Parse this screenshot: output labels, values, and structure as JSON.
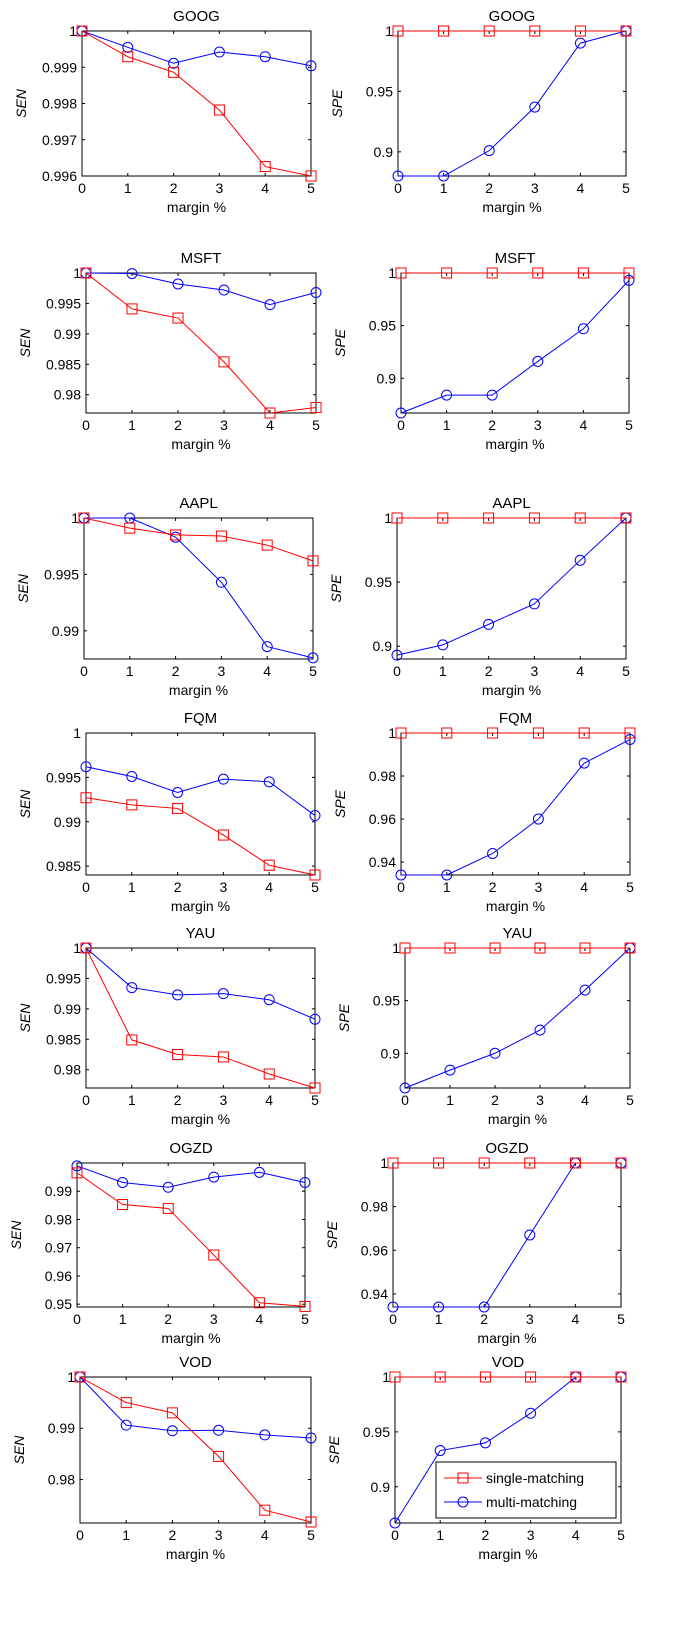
{
  "figure": {
    "legend": {
      "entries": [
        {
          "label": "single-matching",
          "color": "#ff0000",
          "marker": "square"
        },
        {
          "label": "multi-matching",
          "color": "#0000ff",
          "marker": "circle"
        }
      ],
      "placement": "lower-right of last panel"
    }
  },
  "chart_data": [
    {
      "type": "line",
      "title": "GOOG",
      "xlabel": "margin %",
      "ylabel": "SEN",
      "x": [
        0,
        1,
        2,
        3,
        4,
        5
      ],
      "xlim": [
        0,
        5
      ],
      "ylim": [
        0.996,
        1
      ],
      "yticks": [
        0.996,
        0.997,
        0.998,
        0.999,
        1
      ],
      "yticklabels": [
        "0.996",
        "0.997",
        "0.998",
        "0.999",
        "1"
      ],
      "series": [
        {
          "name": "single-matching",
          "color": "#ff0000",
          "marker": "square",
          "values": [
            1.0,
            0.99929,
            0.99886,
            0.99782,
            0.99626,
            0.996
          ]
        },
        {
          "name": "multi-matching",
          "color": "#0000ff",
          "marker": "circle",
          "values": [
            1.0,
            0.99955,
            0.99911,
            0.99942,
            0.99929,
            0.99904
          ]
        }
      ]
    },
    {
      "type": "line",
      "title": "GOOG",
      "xlabel": "margin %",
      "ylabel": "SPE",
      "x": [
        0,
        1,
        2,
        3,
        4,
        5
      ],
      "xlim": [
        0,
        5
      ],
      "ylim": [
        0.88,
        1
      ],
      "yticks": [
        0.9,
        0.95,
        1
      ],
      "yticklabels": [
        "0.9",
        "0.95",
        "1"
      ],
      "series": [
        {
          "name": "single-matching",
          "color": "#ff0000",
          "marker": "square",
          "values": [
            1,
            1,
            1,
            1,
            1,
            1
          ]
        },
        {
          "name": "multi-matching",
          "color": "#0000ff",
          "marker": "circle",
          "values": [
            0.88,
            0.88,
            0.901,
            0.937,
            0.99,
            1.0
          ]
        }
      ]
    },
    {
      "type": "line",
      "title": "MSFT",
      "xlabel": "margin %",
      "ylabel": "SEN",
      "x": [
        0,
        1,
        2,
        3,
        4,
        5
      ],
      "xlim": [
        0,
        5
      ],
      "ylim": [
        0.977,
        1
      ],
      "yticks": [
        0.98,
        0.985,
        0.99,
        0.995,
        1
      ],
      "yticklabels": [
        "0.98",
        "0.985",
        "0.99",
        "0.995",
        "1"
      ],
      "series": [
        {
          "name": "single-matching",
          "color": "#ff0000",
          "marker": "square",
          "values": [
            1.0,
            0.9941,
            0.9926,
            0.9854,
            0.977,
            0.9779
          ]
        },
        {
          "name": "multi-matching",
          "color": "#0000ff",
          "marker": "circle",
          "values": [
            1.0,
            0.9999,
            0.9982,
            0.9972,
            0.9948,
            0.9968
          ]
        }
      ]
    },
    {
      "type": "line",
      "title": "MSFT",
      "xlabel": "margin %",
      "ylabel": "SPE",
      "x": [
        0,
        1,
        2,
        3,
        4,
        5
      ],
      "xlim": [
        0,
        5
      ],
      "ylim": [
        0.867,
        1
      ],
      "yticks": [
        0.9,
        0.95,
        1
      ],
      "yticklabels": [
        "0.9",
        "0.95",
        "1"
      ],
      "series": [
        {
          "name": "single-matching",
          "color": "#ff0000",
          "marker": "square",
          "values": [
            1,
            1,
            1,
            1,
            1,
            1
          ]
        },
        {
          "name": "multi-matching",
          "color": "#0000ff",
          "marker": "circle",
          "values": [
            0.867,
            0.884,
            0.884,
            0.916,
            0.947,
            0.993
          ]
        }
      ]
    },
    {
      "type": "line",
      "title": "AAPL",
      "xlabel": "margin %",
      "ylabel": "SEN",
      "x": [
        0,
        1,
        2,
        3,
        4,
        5
      ],
      "xlim": [
        0,
        5
      ],
      "ylim": [
        0.9875,
        1
      ],
      "yticks": [
        0.99,
        0.995,
        1
      ],
      "yticklabels": [
        "0.99",
        "0.995",
        "1"
      ],
      "series": [
        {
          "name": "single-matching",
          "color": "#ff0000",
          "marker": "square",
          "values": [
            1.0,
            0.9991,
            0.9985,
            0.9984,
            0.9976,
            0.9962
          ]
        },
        {
          "name": "multi-matching",
          "color": "#0000ff",
          "marker": "circle",
          "values": [
            1.0,
            1.0,
            0.9983,
            0.9943,
            0.9886,
            0.9876
          ]
        }
      ]
    },
    {
      "type": "line",
      "title": "AAPL",
      "xlabel": "margin %",
      "ylabel": "SPE",
      "x": [
        0,
        1,
        2,
        3,
        4,
        5
      ],
      "xlim": [
        0,
        5
      ],
      "ylim": [
        0.89,
        1
      ],
      "yticks": [
        0.9,
        0.95,
        1
      ],
      "yticklabels": [
        "0.9",
        "0.95",
        "1"
      ],
      "series": [
        {
          "name": "single-matching",
          "color": "#ff0000",
          "marker": "square",
          "values": [
            1,
            1,
            1,
            1,
            1,
            1
          ]
        },
        {
          "name": "multi-matching",
          "color": "#0000ff",
          "marker": "circle",
          "values": [
            0.893,
            0.901,
            0.917,
            0.933,
            0.967,
            1.0
          ]
        }
      ]
    },
    {
      "type": "line",
      "title": "FQM",
      "xlabel": "margin %",
      "ylabel": "SEN",
      "x": [
        0,
        1,
        2,
        3,
        4,
        5
      ],
      "xlim": [
        0,
        5
      ],
      "ylim": [
        0.984,
        1
      ],
      "yticks": [
        0.985,
        0.99,
        0.995,
        1
      ],
      "yticklabels": [
        "0.985",
        "0.99",
        "0.995",
        "1"
      ],
      "series": [
        {
          "name": "single-matching",
          "color": "#ff0000",
          "marker": "square",
          "values": [
            0.9927,
            0.9919,
            0.9915,
            0.9885,
            0.9851,
            0.984
          ]
        },
        {
          "name": "multi-matching",
          "color": "#0000ff",
          "marker": "circle",
          "values": [
            0.9962,
            0.9951,
            0.9933,
            0.9948,
            0.9945,
            0.9907
          ]
        }
      ]
    },
    {
      "type": "line",
      "title": "FQM",
      "xlabel": "margin %",
      "ylabel": "SPE",
      "x": [
        0,
        1,
        2,
        3,
        4,
        5
      ],
      "xlim": [
        0,
        5
      ],
      "ylim": [
        0.934,
        1
      ],
      "yticks": [
        0.94,
        0.96,
        0.98,
        1
      ],
      "yticklabels": [
        "0.94",
        "0.96",
        "0.98",
        "1"
      ],
      "series": [
        {
          "name": "single-matching",
          "color": "#ff0000",
          "marker": "square",
          "values": [
            1,
            1,
            1,
            1,
            1,
            1
          ]
        },
        {
          "name": "multi-matching",
          "color": "#0000ff",
          "marker": "circle",
          "values": [
            0.934,
            0.934,
            0.944,
            0.96,
            0.986,
            0.997
          ]
        }
      ]
    },
    {
      "type": "line",
      "title": "YAU",
      "xlabel": "margin %",
      "ylabel": "SEN",
      "x": [
        0,
        1,
        2,
        3,
        4,
        5
      ],
      "xlim": [
        0,
        5
      ],
      "ylim": [
        0.977,
        1
      ],
      "yticks": [
        0.98,
        0.985,
        0.99,
        0.995,
        1
      ],
      "yticklabels": [
        "0.98",
        "0.985",
        "0.99",
        "0.995",
        "1"
      ],
      "series": [
        {
          "name": "single-matching",
          "color": "#ff0000",
          "marker": "square",
          "values": [
            1.0,
            0.9849,
            0.9825,
            0.9821,
            0.9793,
            0.977
          ]
        },
        {
          "name": "multi-matching",
          "color": "#0000ff",
          "marker": "circle",
          "values": [
            1.0,
            0.9935,
            0.9923,
            0.9925,
            0.9915,
            0.9883
          ]
        }
      ]
    },
    {
      "type": "line",
      "title": "YAU",
      "xlabel": "margin %",
      "ylabel": "SPE",
      "x": [
        0,
        1,
        2,
        3,
        4,
        5
      ],
      "xlim": [
        0,
        5
      ],
      "ylim": [
        0.867,
        1
      ],
      "yticks": [
        0.9,
        0.95,
        1
      ],
      "yticklabels": [
        "0.9",
        "0.95",
        "1"
      ],
      "series": [
        {
          "name": "single-matching",
          "color": "#ff0000",
          "marker": "square",
          "values": [
            1,
            1,
            1,
            1,
            1,
            1
          ]
        },
        {
          "name": "multi-matching",
          "color": "#0000ff",
          "marker": "circle",
          "values": [
            0.867,
            0.884,
            0.9,
            0.922,
            0.96,
            1.0
          ]
        }
      ]
    },
    {
      "type": "line",
      "title": "OGZD",
      "xlabel": "margin %",
      "ylabel": "SEN",
      "x": [
        0,
        1,
        2,
        3,
        4,
        5
      ],
      "xlim": [
        0,
        5
      ],
      "ylim": [
        0.949,
        1
      ],
      "yticks": [
        0.95,
        0.96,
        0.97,
        0.98,
        0.99
      ],
      "yticklabels": [
        "0.95",
        "0.96",
        "0.97",
        "0.98",
        "0.99"
      ],
      "series": [
        {
          "name": "single-matching",
          "color": "#ff0000",
          "marker": "square",
          "values": [
            0.9965,
            0.9853,
            0.9839,
            0.9674,
            0.9505,
            0.9492
          ]
        },
        {
          "name": "multi-matching",
          "color": "#0000ff",
          "marker": "circle",
          "values": [
            0.999,
            0.9931,
            0.9914,
            0.995,
            0.9967,
            0.9931
          ]
        }
      ]
    },
    {
      "type": "line",
      "title": "OGZD",
      "xlabel": "margin %",
      "ylabel": "SPE",
      "x": [
        0,
        1,
        2,
        3,
        4,
        5
      ],
      "xlim": [
        0,
        5
      ],
      "ylim": [
        0.934,
        1
      ],
      "yticks": [
        0.94,
        0.96,
        0.98,
        1
      ],
      "yticklabels": [
        "0.94",
        "0.96",
        "0.98",
        "1"
      ],
      "series": [
        {
          "name": "single-matching",
          "color": "#ff0000",
          "marker": "square",
          "values": [
            1,
            1,
            1,
            1,
            1,
            1
          ]
        },
        {
          "name": "multi-matching",
          "color": "#0000ff",
          "marker": "circle",
          "values": [
            0.934,
            0.934,
            0.934,
            0.967,
            1.0,
            1.0
          ]
        }
      ]
    },
    {
      "type": "line",
      "title": "VOD",
      "xlabel": "margin %",
      "ylabel": "SEN",
      "x": [
        0,
        1,
        2,
        3,
        4,
        5
      ],
      "xlim": [
        0,
        5
      ],
      "ylim": [
        0.9715,
        1
      ],
      "yticks": [
        0.98,
        0.99,
        1
      ],
      "yticklabels": [
        "0.98",
        "0.99",
        "1"
      ],
      "series": [
        {
          "name": "single-matching",
          "color": "#ff0000",
          "marker": "square",
          "values": [
            1.0,
            0.995,
            0.993,
            0.9845,
            0.974,
            0.9717
          ]
        },
        {
          "name": "multi-matching",
          "color": "#0000ff",
          "marker": "circle",
          "values": [
            1.0,
            0.9906,
            0.9895,
            0.9896,
            0.9887,
            0.9881
          ]
        }
      ]
    },
    {
      "type": "line",
      "title": "VOD",
      "xlabel": "margin %",
      "ylabel": "SPE",
      "x": [
        0,
        1,
        2,
        3,
        4,
        5
      ],
      "xlim": [
        0,
        5
      ],
      "ylim": [
        0.867,
        1
      ],
      "yticks": [
        0.9,
        0.95,
        1
      ],
      "yticklabels": [
        "0.9",
        "0.95",
        "1"
      ],
      "legend": true,
      "series": [
        {
          "name": "single-matching",
          "color": "#ff0000",
          "marker": "square",
          "values": [
            1,
            1,
            1,
            1,
            1,
            1
          ]
        },
        {
          "name": "multi-matching",
          "color": "#0000ff",
          "marker": "circle",
          "values": [
            0.867,
            0.933,
            0.94,
            0.967,
            1.0,
            1.0
          ]
        }
      ]
    }
  ]
}
